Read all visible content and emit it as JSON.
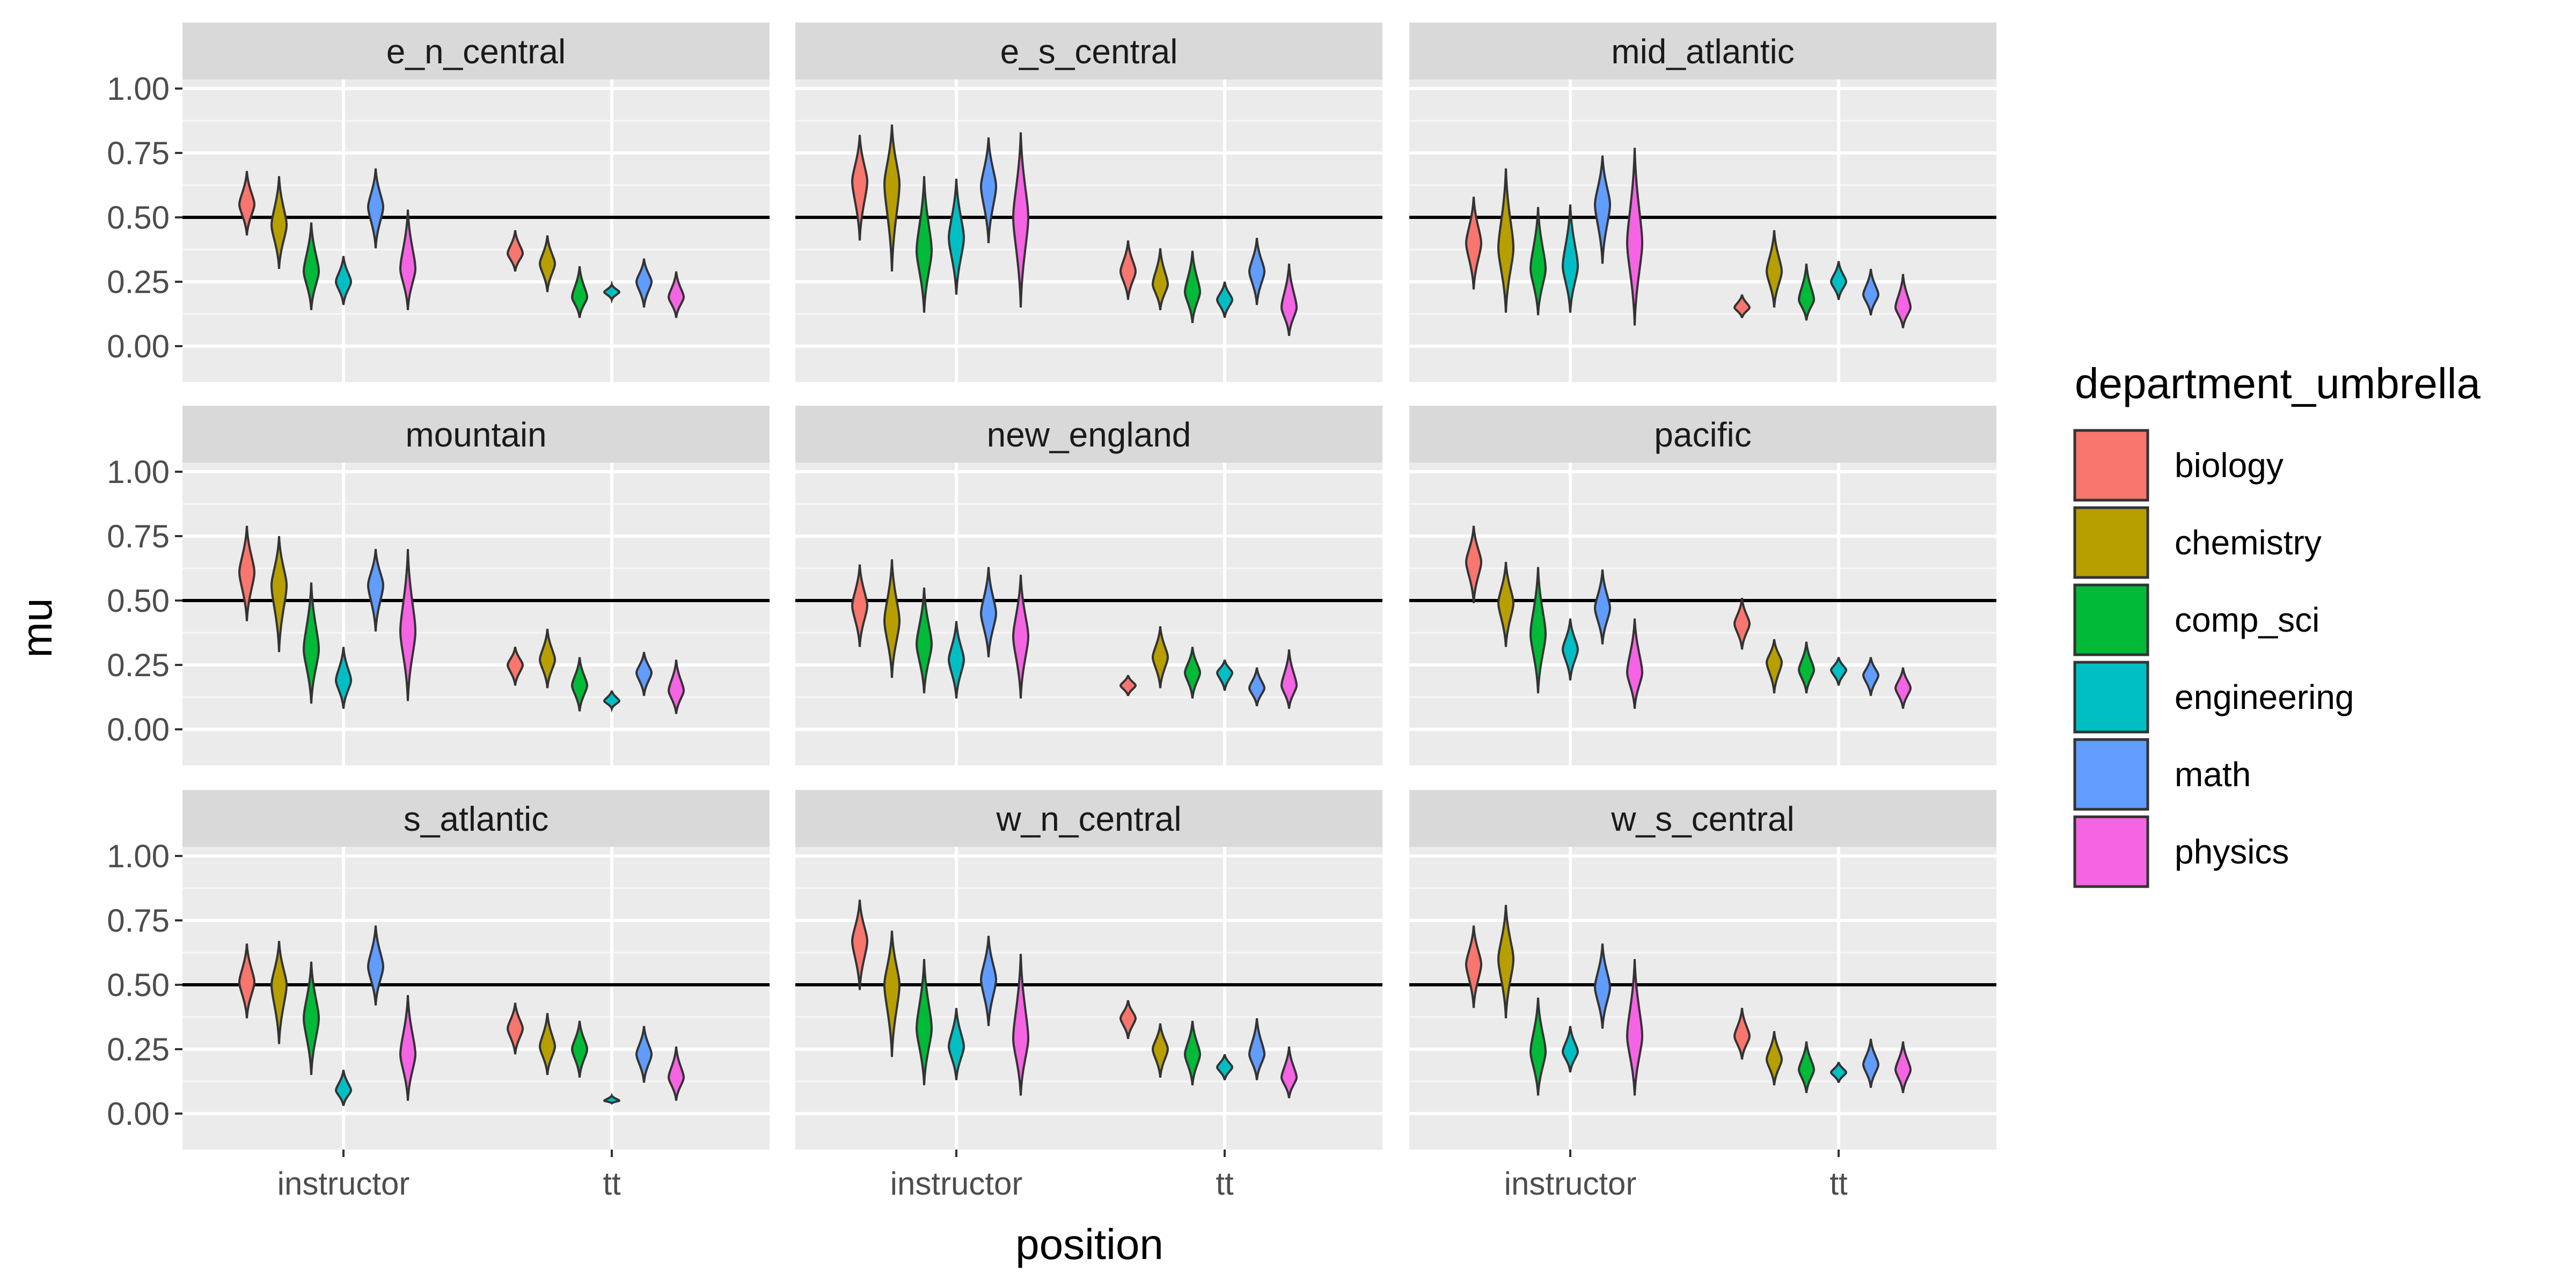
{
  "chart_data": {
    "type": "violin",
    "xlabel": "position",
    "ylabel": "mu",
    "ylim": [
      0,
      1
    ],
    "y_ticks": [
      "0.00",
      "0.25",
      "0.50",
      "0.75",
      "1.00"
    ],
    "x_categories": [
      "instructor",
      "tt"
    ],
    "reference_line_y": 0.5,
    "grid": true,
    "legend_position": "right",
    "legend_title": "department_umbrella",
    "series": [
      {
        "name": "biology",
        "color": "#F8766D"
      },
      {
        "name": "chemistry",
        "color": "#B79F00"
      },
      {
        "name": "comp_sci",
        "color": "#00BA38"
      },
      {
        "name": "engineering",
        "color": "#00BFC4"
      },
      {
        "name": "math",
        "color": "#619CFF"
      },
      {
        "name": "physics",
        "color": "#F564E3"
      }
    ],
    "facets": [
      {
        "name": "e_n_central",
        "instructor": [
          [
            0.55,
            0.43,
            0.68
          ],
          [
            0.47,
            0.3,
            0.66
          ],
          [
            0.29,
            0.14,
            0.48
          ],
          [
            0.25,
            0.16,
            0.35
          ],
          [
            0.54,
            0.38,
            0.69
          ],
          [
            0.3,
            0.14,
            0.53
          ]
        ],
        "tt": [
          [
            0.36,
            0.29,
            0.45
          ],
          [
            0.32,
            0.21,
            0.43
          ],
          [
            0.19,
            0.11,
            0.31
          ],
          [
            0.21,
            0.18,
            0.24
          ],
          [
            0.25,
            0.15,
            0.34
          ],
          [
            0.19,
            0.11,
            0.29
          ]
        ]
      },
      {
        "name": "e_s_central",
        "instructor": [
          [
            0.64,
            0.41,
            0.82
          ],
          [
            0.63,
            0.29,
            0.86
          ],
          [
            0.37,
            0.13,
            0.66
          ],
          [
            0.42,
            0.2,
            0.65
          ],
          [
            0.62,
            0.4,
            0.81
          ],
          [
            0.5,
            0.15,
            0.83
          ]
        ],
        "tt": [
          [
            0.29,
            0.18,
            0.41
          ],
          [
            0.24,
            0.14,
            0.38
          ],
          [
            0.21,
            0.09,
            0.37
          ],
          [
            0.18,
            0.11,
            0.25
          ],
          [
            0.29,
            0.16,
            0.42
          ],
          [
            0.15,
            0.04,
            0.32
          ]
        ]
      },
      {
        "name": "mid_atlantic",
        "instructor": [
          [
            0.4,
            0.22,
            0.58
          ],
          [
            0.38,
            0.13,
            0.69
          ],
          [
            0.3,
            0.12,
            0.54
          ],
          [
            0.31,
            0.13,
            0.55
          ],
          [
            0.55,
            0.32,
            0.74
          ],
          [
            0.4,
            0.08,
            0.77
          ]
        ],
        "tt": [
          [
            0.15,
            0.11,
            0.2
          ],
          [
            0.29,
            0.15,
            0.45
          ],
          [
            0.18,
            0.1,
            0.32
          ],
          [
            0.25,
            0.18,
            0.33
          ],
          [
            0.2,
            0.12,
            0.3
          ],
          [
            0.15,
            0.07,
            0.28
          ]
        ]
      },
      {
        "name": "mountain",
        "instructor": [
          [
            0.61,
            0.42,
            0.79
          ],
          [
            0.56,
            0.3,
            0.75
          ],
          [
            0.31,
            0.1,
            0.57
          ],
          [
            0.19,
            0.08,
            0.32
          ],
          [
            0.56,
            0.38,
            0.7
          ],
          [
            0.38,
            0.11,
            0.7
          ]
        ],
        "tt": [
          [
            0.25,
            0.17,
            0.32
          ],
          [
            0.27,
            0.16,
            0.39
          ],
          [
            0.17,
            0.07,
            0.28
          ],
          [
            0.11,
            0.08,
            0.15
          ],
          [
            0.22,
            0.13,
            0.3
          ],
          [
            0.15,
            0.06,
            0.27
          ]
        ]
      },
      {
        "name": "new_england",
        "instructor": [
          [
            0.48,
            0.32,
            0.64
          ],
          [
            0.42,
            0.2,
            0.66
          ],
          [
            0.33,
            0.14,
            0.55
          ],
          [
            0.27,
            0.12,
            0.42
          ],
          [
            0.45,
            0.28,
            0.63
          ],
          [
            0.36,
            0.12,
            0.6
          ]
        ],
        "tt": [
          [
            0.17,
            0.13,
            0.21
          ],
          [
            0.28,
            0.16,
            0.4
          ],
          [
            0.22,
            0.12,
            0.32
          ],
          [
            0.22,
            0.15,
            0.27
          ],
          [
            0.16,
            0.09,
            0.24
          ],
          [
            0.17,
            0.08,
            0.31
          ]
        ]
      },
      {
        "name": "pacific",
        "instructor": [
          [
            0.65,
            0.49,
            0.79
          ],
          [
            0.49,
            0.32,
            0.65
          ],
          [
            0.37,
            0.14,
            0.63
          ],
          [
            0.31,
            0.19,
            0.43
          ],
          [
            0.47,
            0.33,
            0.62
          ],
          [
            0.22,
            0.08,
            0.43
          ]
        ],
        "tt": [
          [
            0.41,
            0.31,
            0.51
          ],
          [
            0.26,
            0.14,
            0.35
          ],
          [
            0.23,
            0.14,
            0.34
          ],
          [
            0.23,
            0.17,
            0.28
          ],
          [
            0.21,
            0.13,
            0.28
          ],
          [
            0.16,
            0.08,
            0.24
          ]
        ]
      },
      {
        "name": "s_atlantic",
        "instructor": [
          [
            0.51,
            0.37,
            0.66
          ],
          [
            0.5,
            0.27,
            0.67
          ],
          [
            0.37,
            0.15,
            0.59
          ],
          [
            0.09,
            0.03,
            0.17
          ],
          [
            0.57,
            0.42,
            0.73
          ],
          [
            0.23,
            0.05,
            0.46
          ]
        ],
        "tt": [
          [
            0.33,
            0.23,
            0.43
          ],
          [
            0.26,
            0.15,
            0.39
          ],
          [
            0.25,
            0.14,
            0.36
          ],
          [
            0.05,
            0.04,
            0.07
          ],
          [
            0.23,
            0.12,
            0.34
          ],
          [
            0.14,
            0.05,
            0.26
          ]
        ]
      },
      {
        "name": "w_n_central",
        "instructor": [
          [
            0.67,
            0.48,
            0.83
          ],
          [
            0.5,
            0.22,
            0.71
          ],
          [
            0.33,
            0.11,
            0.6
          ],
          [
            0.26,
            0.13,
            0.41
          ],
          [
            0.52,
            0.34,
            0.69
          ],
          [
            0.29,
            0.07,
            0.62
          ]
        ],
        "tt": [
          [
            0.37,
            0.29,
            0.44
          ],
          [
            0.25,
            0.14,
            0.35
          ],
          [
            0.23,
            0.11,
            0.36
          ],
          [
            0.18,
            0.13,
            0.23
          ],
          [
            0.23,
            0.13,
            0.37
          ],
          [
            0.14,
            0.06,
            0.26
          ]
        ]
      },
      {
        "name": "w_s_central",
        "instructor": [
          [
            0.58,
            0.41,
            0.73
          ],
          [
            0.6,
            0.37,
            0.81
          ],
          [
            0.24,
            0.07,
            0.45
          ],
          [
            0.24,
            0.16,
            0.34
          ],
          [
            0.49,
            0.33,
            0.66
          ],
          [
            0.3,
            0.07,
            0.6
          ]
        ],
        "tt": [
          [
            0.3,
            0.21,
            0.41
          ],
          [
            0.21,
            0.11,
            0.32
          ],
          [
            0.17,
            0.08,
            0.28
          ],
          [
            0.16,
            0.12,
            0.2
          ],
          [
            0.19,
            0.1,
            0.29
          ],
          [
            0.17,
            0.08,
            0.28
          ]
        ]
      }
    ]
  }
}
